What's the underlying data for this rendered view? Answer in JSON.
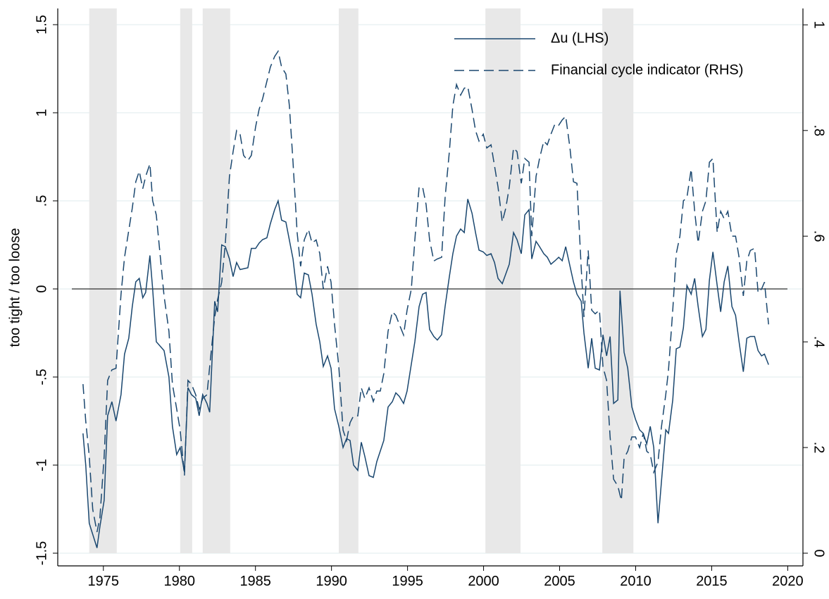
{
  "chart_data": {
    "type": "line",
    "y_label": "too tight / too loose",
    "xlim": [
      1972,
      2021
    ],
    "xticks": [
      1975,
      1980,
      1985,
      1990,
      1995,
      2000,
      2005,
      2010,
      2015,
      2020
    ],
    "ylim": [
      -1.572,
      1.592
    ],
    "yticks": [
      {
        "value": -1.5,
        "label": "-1.5"
      },
      -1,
      {
        "value": -0.5,
        "label": "-.5"
      },
      0,
      {
        "value": 0.5,
        "label": ".5"
      },
      1,
      1.5
    ],
    "y2lim": [
      -0.024,
      1.031
    ],
    "y2ticks": [
      0,
      {
        "value": 0.2,
        "label": ".2"
      },
      {
        "value": 0.4,
        "label": ".4"
      },
      {
        "value": 0.6,
        "label": ".6"
      },
      {
        "value": 0.8,
        "label": ".8"
      },
      1
    ],
    "grid": true,
    "reference_line": 0,
    "legend": "top-right",
    "shaded_color": "#e8e8e8",
    "shaded": [
      [
        1974.07,
        1975.88
      ],
      [
        1980.05,
        1980.84
      ],
      [
        1981.53,
        1983.34
      ],
      [
        1990.48,
        1991.77
      ],
      [
        2000.12,
        2002.43
      ],
      [
        2007.81,
        2009.85
      ]
    ],
    "series": [
      {
        "name": "Δu (LHS)",
        "color": "#1a476f",
        "style": "solid",
        "x": [
          1973.66,
          1973.84,
          1974.07,
          1974.58,
          1974.77,
          1975.05,
          1975.28,
          1975.56,
          1975.83,
          1976.16,
          1976.39,
          1976.67,
          1976.9,
          1977.13,
          1977.36,
          1977.59,
          1977.78,
          1978.06,
          1978.24,
          1978.48,
          1978.99,
          1979.31,
          1979.54,
          1979.82,
          1980.05,
          1980.33,
          1980.56,
          1980.79,
          1981.07,
          1981.3,
          1981.53,
          1981.81,
          1981.99,
          1982.32,
          1982.51,
          1982.78,
          1983.02,
          1983.29,
          1983.53,
          1983.76,
          1983.99,
          1984.5,
          1984.73,
          1985.01,
          1985.24,
          1985.47,
          1985.75,
          1985.98,
          1986.26,
          1986.49,
          1986.72,
          1987.0,
          1987.47,
          1987.74,
          1987.97,
          1988.21,
          1988.48,
          1988.72,
          1988.99,
          1989.23,
          1989.46,
          1989.74,
          1989.97,
          1990.2,
          1990.48,
          1990.76,
          1990.99,
          1991.22,
          1991.45,
          1991.73,
          1991.96,
          1992.19,
          1992.47,
          1992.75,
          1992.98,
          1993.44,
          1993.72,
          1994.0,
          1994.23,
          1994.46,
          1994.74,
          1994.97,
          1995.48,
          1995.76,
          1995.99,
          1996.22,
          1996.45,
          1996.73,
          1996.96,
          1997.24,
          1997.47,
          1997.75,
          1997.98,
          1998.22,
          1998.49,
          1998.73,
          1998.96,
          1999.24,
          1999.47,
          1999.7,
          1999.98,
          2000.21,
          2000.49,
          2000.72,
          2000.95,
          2001.23,
          2001.69,
          2001.97,
          2002.2,
          2002.48,
          2002.71,
          2002.99,
          2003.17,
          2003.45,
          2003.68,
          2003.96,
          2004.19,
          2004.43,
          2004.7,
          2004.94,
          2005.17,
          2005.4,
          2005.68,
          2005.91,
          2006.14,
          2006.42,
          2006.6,
          2006.88,
          2007.11,
          2007.34,
          2007.62,
          2007.85,
          2008.09,
          2008.32,
          2008.55,
          2008.83,
          2008.97,
          2009.24,
          2009.48,
          2009.75,
          2009.99,
          2010.26,
          2010.5,
          2010.73,
          2010.96,
          2011.19,
          2011.47,
          2011.7,
          2011.98,
          2012.16,
          2012.44,
          2012.67,
          2012.91,
          2013.14,
          2013.37,
          2013.65,
          2013.88,
          2014.11,
          2014.39,
          2014.62,
          2014.85,
          2015.08,
          2015.36,
          2015.59,
          2015.82,
          2016.06,
          2016.33,
          2016.57,
          2016.8,
          2017.08,
          2017.31,
          2017.54,
          2017.82,
          2018.05,
          2018.28,
          2018.47,
          2018.74
        ],
        "values": [
          -0.82,
          -1.0,
          -1.33,
          -1.47,
          -1.35,
          -1.2,
          -0.72,
          -0.64,
          -0.75,
          -0.6,
          -0.37,
          -0.28,
          -0.1,
          0.04,
          0.06,
          -0.05,
          -0.02,
          0.19,
          0.0,
          -0.3,
          -0.35,
          -0.5,
          -0.78,
          -0.94,
          -0.9,
          -1.04,
          -0.56,
          -0.6,
          -0.62,
          -0.72,
          -0.6,
          -0.65,
          -0.7,
          -0.07,
          -0.13,
          0.25,
          0.24,
          0.17,
          0.07,
          0.15,
          0.11,
          0.12,
          0.23,
          0.23,
          0.26,
          0.28,
          0.29,
          0.37,
          0.45,
          0.5,
          0.39,
          0.38,
          0.17,
          -0.03,
          -0.05,
          0.09,
          0.08,
          -0.03,
          -0.2,
          -0.3,
          -0.44,
          -0.38,
          -0.45,
          -0.68,
          -0.78,
          -0.9,
          -0.85,
          -0.86,
          -1.0,
          -1.03,
          -0.87,
          -0.95,
          -1.06,
          -1.07,
          -0.98,
          -0.86,
          -0.67,
          -0.64,
          -0.59,
          -0.61,
          -0.65,
          -0.58,
          -0.3,
          -0.1,
          -0.03,
          -0.02,
          -0.23,
          -0.27,
          -0.29,
          -0.26,
          -0.1,
          0.07,
          0.2,
          0.3,
          0.34,
          0.32,
          0.51,
          0.43,
          0.32,
          0.22,
          0.21,
          0.19,
          0.2,
          0.15,
          0.06,
          0.03,
          0.14,
          0.32,
          0.28,
          0.2,
          0.42,
          0.45,
          0.17,
          0.27,
          0.24,
          0.2,
          0.18,
          0.14,
          0.16,
          0.18,
          0.16,
          0.24,
          0.13,
          0.04,
          -0.03,
          -0.07,
          -0.25,
          -0.45,
          -0.28,
          -0.45,
          -0.46,
          -0.26,
          -0.38,
          -0.27,
          -0.65,
          -0.63,
          -0.01,
          -0.36,
          -0.45,
          -0.67,
          -0.74,
          -0.8,
          -0.82,
          -0.88,
          -0.78,
          -0.9,
          -1.33,
          -1.09,
          -0.8,
          -0.82,
          -0.63,
          -0.34,
          -0.33,
          -0.22,
          0.02,
          -0.03,
          0.06,
          -0.1,
          -0.27,
          -0.23,
          0.05,
          0.21,
          0.02,
          -0.13,
          0.04,
          0.13,
          -0.1,
          -0.15,
          -0.3,
          -0.47,
          -0.28,
          -0.27,
          -0.27,
          -0.35,
          -0.38,
          -0.37,
          -0.43
        ]
      },
      {
        "name": "Financial cycle indicator (RHS)",
        "color": "#1a476f",
        "style": "dashed",
        "axis": "y2",
        "x": [
          1973.66,
          1973.84,
          1974.07,
          1974.3,
          1974.58,
          1974.77,
          1975.05,
          1975.28,
          1975.56,
          1975.83,
          1976.16,
          1976.39,
          1976.9,
          1977.13,
          1977.36,
          1977.59,
          1977.78,
          1978.06,
          1978.24,
          1978.48,
          1978.99,
          1979.31,
          1979.54,
          1979.82,
          1980.05,
          1980.33,
          1980.56,
          1980.79,
          1981.07,
          1981.3,
          1981.53,
          1981.81,
          1981.99,
          1982.32,
          1982.51,
          1982.78,
          1983.02,
          1983.29,
          1983.53,
          1983.76,
          1983.99,
          1984.22,
          1984.5,
          1984.73,
          1985.01,
          1985.24,
          1985.47,
          1985.75,
          1985.98,
          1986.26,
          1986.49,
          1986.72,
          1987.0,
          1987.23,
          1987.47,
          1987.74,
          1987.97,
          1988.21,
          1988.48,
          1988.72,
          1988.99,
          1989.23,
          1989.46,
          1989.74,
          1989.97,
          1990.2,
          1990.48,
          1990.76,
          1990.99,
          1991.22,
          1991.45,
          1991.73,
          1991.96,
          1992.19,
          1992.47,
          1992.75,
          1992.98,
          1993.21,
          1993.44,
          1993.72,
          1994.0,
          1994.23,
          1994.46,
          1994.74,
          1994.97,
          1995.25,
          1995.48,
          1995.76,
          1995.99,
          1996.22,
          1996.45,
          1996.73,
          1996.96,
          1997.24,
          1997.47,
          1997.75,
          1997.98,
          1998.22,
          1998.49,
          1998.73,
          1998.96,
          1999.24,
          1999.47,
          1999.7,
          1999.98,
          2000.21,
          2000.49,
          2000.72,
          2000.95,
          2001.23,
          2001.46,
          2001.69,
          2001.97,
          2002.2,
          2002.48,
          2002.71,
          2002.99,
          2003.17,
          2003.45,
          2003.68,
          2003.96,
          2004.19,
          2004.43,
          2004.7,
          2004.94,
          2005.17,
          2005.4,
          2005.68,
          2005.91,
          2006.14,
          2006.42,
          2006.6,
          2006.88,
          2007.11,
          2007.34,
          2007.62,
          2007.85,
          2008.09,
          2008.32,
          2008.55,
          2008.83,
          2009.06,
          2009.24,
          2009.48,
          2009.75,
          2009.99,
          2010.26,
          2010.5,
          2010.73,
          2010.96,
          2011.19,
          2011.47,
          2011.7,
          2011.98,
          2012.16,
          2012.44,
          2012.67,
          2012.91,
          2013.14,
          2013.37,
          2013.65,
          2013.88,
          2014.11,
          2014.39,
          2014.62,
          2014.85,
          2015.08,
          2015.36,
          2015.59,
          2015.82,
          2016.06,
          2016.33,
          2016.57,
          2016.8,
          2017.08,
          2017.31,
          2017.54,
          2017.82,
          2018.05,
          2018.28,
          2018.47,
          2018.74
        ],
        "values": [
          0.32,
          0.25,
          0.183,
          0.083,
          0.04,
          0.067,
          0.183,
          0.327,
          0.347,
          0.35,
          0.49,
          0.56,
          0.653,
          0.703,
          0.723,
          0.69,
          0.713,
          0.737,
          0.667,
          0.64,
          0.487,
          0.42,
          0.32,
          0.273,
          0.233,
          0.147,
          0.327,
          0.32,
          0.3,
          0.273,
          0.293,
          0.3,
          0.353,
          0.447,
          0.48,
          0.513,
          0.587,
          0.713,
          0.76,
          0.8,
          0.793,
          0.753,
          0.743,
          0.753,
          0.807,
          0.84,
          0.86,
          0.893,
          0.92,
          0.94,
          0.95,
          0.92,
          0.907,
          0.847,
          0.74,
          0.607,
          0.543,
          0.593,
          0.613,
          0.587,
          0.593,
          0.567,
          0.5,
          0.543,
          0.513,
          0.433,
          0.353,
          0.233,
          0.213,
          0.247,
          0.26,
          0.26,
          0.313,
          0.293,
          0.313,
          0.287,
          0.307,
          0.307,
          0.34,
          0.42,
          0.457,
          0.45,
          0.433,
          0.413,
          0.46,
          0.5,
          0.593,
          0.693,
          0.693,
          0.66,
          0.593,
          0.553,
          0.557,
          0.56,
          0.673,
          0.76,
          0.847,
          0.887,
          0.867,
          0.88,
          0.883,
          0.84,
          0.8,
          0.78,
          0.793,
          0.767,
          0.773,
          0.733,
          0.693,
          0.627,
          0.653,
          0.693,
          0.767,
          0.76,
          0.7,
          0.747,
          0.74,
          0.6,
          0.713,
          0.747,
          0.78,
          0.773,
          0.793,
          0.813,
          0.81,
          0.82,
          0.827,
          0.767,
          0.703,
          0.7,
          0.54,
          0.447,
          0.573,
          0.46,
          0.453,
          0.46,
          0.353,
          0.327,
          0.22,
          0.14,
          0.127,
          0.1,
          0.18,
          0.193,
          0.22,
          0.22,
          0.2,
          0.227,
          0.193,
          0.187,
          0.153,
          0.173,
          0.24,
          0.3,
          0.347,
          0.46,
          0.567,
          0.6,
          0.667,
          0.673,
          0.727,
          0.647,
          0.587,
          0.647,
          0.667,
          0.74,
          0.747,
          0.607,
          0.647,
          0.633,
          0.647,
          0.6,
          0.6,
          0.56,
          0.487,
          0.553,
          0.573,
          0.577,
          0.493,
          0.5,
          0.513,
          0.433
        ]
      }
    ]
  }
}
